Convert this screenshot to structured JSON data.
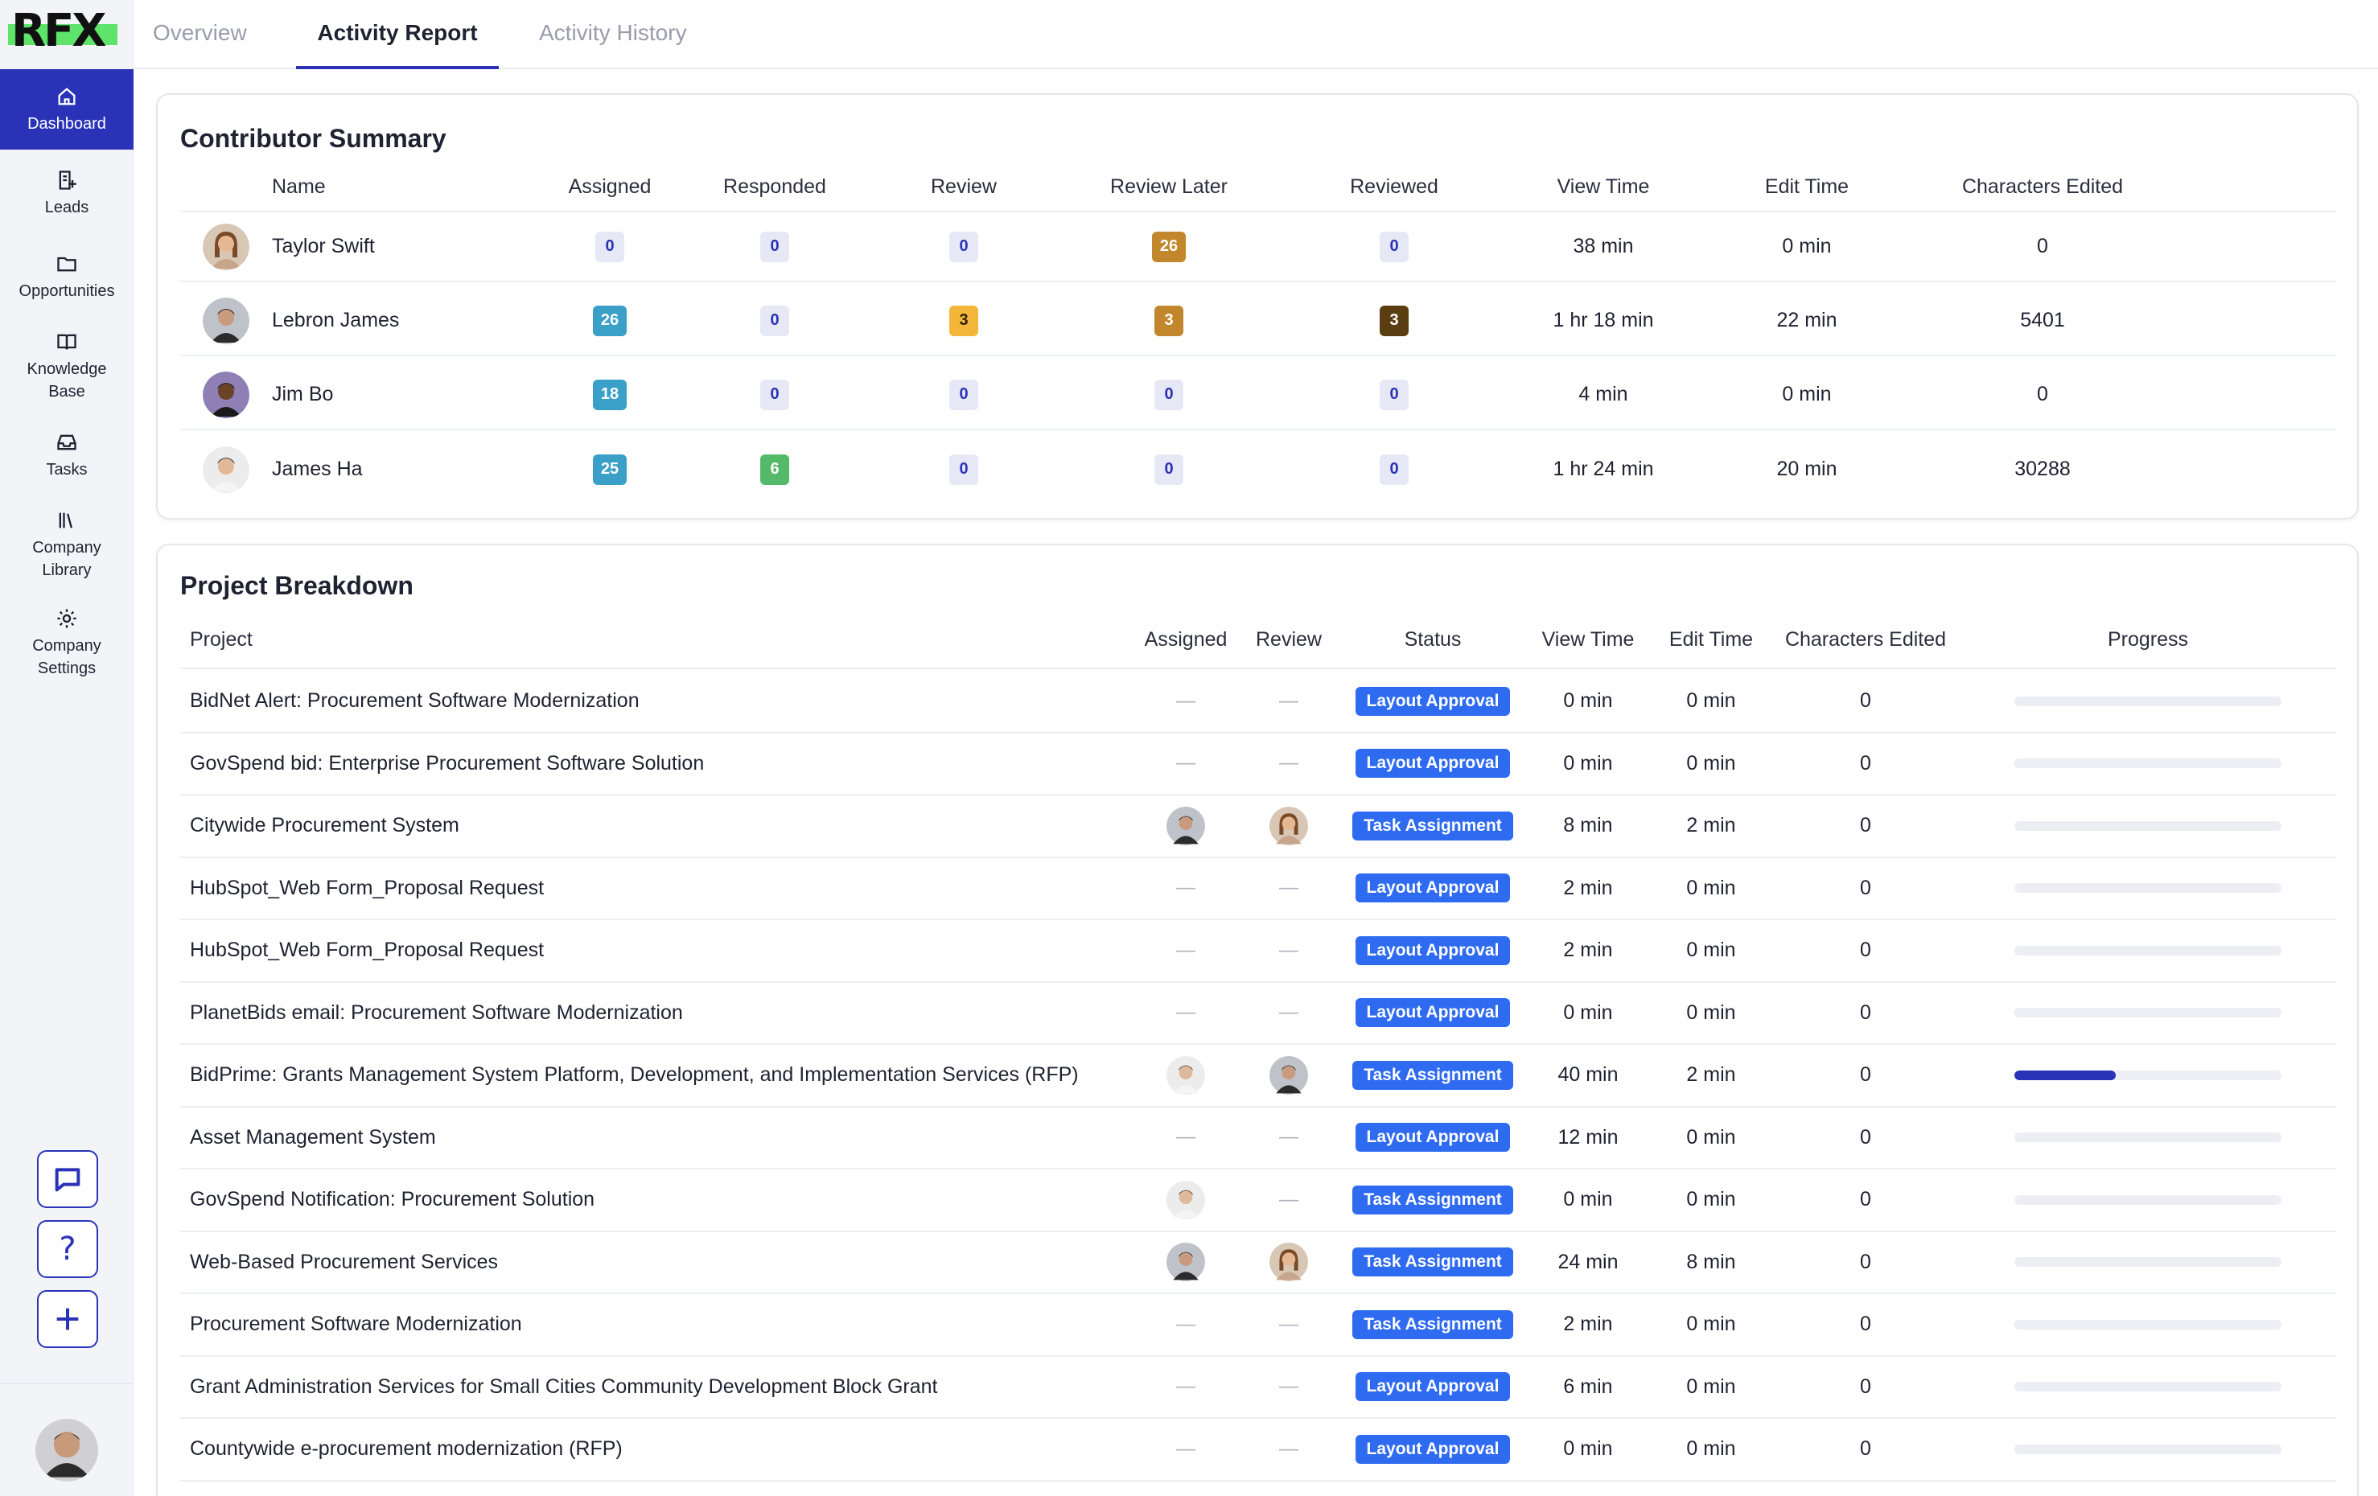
{
  "app": {
    "logo": "RFX"
  },
  "sidebar": {
    "items": [
      {
        "label": "Dashboard",
        "icon": "home-icon"
      },
      {
        "label": "Leads",
        "icon": "lead-doc-icon"
      },
      {
        "label": "Opportunities",
        "icon": "folder-icon"
      },
      {
        "label": "Knowledge Base",
        "icon": "book-icon"
      },
      {
        "label": "Tasks",
        "icon": "inbox-icon"
      },
      {
        "label": "Company Library",
        "icon": "library-icon"
      },
      {
        "label": "Company Settings",
        "icon": "gear-icon"
      }
    ],
    "bottom": [
      {
        "icon": "chat-icon",
        "glyph": ""
      },
      {
        "icon": "help-icon",
        "glyph": "?"
      },
      {
        "icon": "plus-icon",
        "glyph": ""
      }
    ]
  },
  "tabs": [
    {
      "label": "Overview",
      "active": false
    },
    {
      "label": "Activity Report",
      "active": true
    },
    {
      "label": "Activity History",
      "active": false
    }
  ],
  "contributors": {
    "title": "Contributor Summary",
    "columns": [
      "Name",
      "Assigned",
      "Responded",
      "Review",
      "Review Later",
      "Reviewed",
      "View Time",
      "Edit Time",
      "Characters Edited"
    ],
    "rows": [
      {
        "name": "Taylor Swift",
        "avatar": "avatar-woman",
        "assigned": "0",
        "responded": "0",
        "review": "0",
        "review_later": "26",
        "reviewed": "0",
        "view_time": "38 min",
        "edit_time": "0 min",
        "chars": "0"
      },
      {
        "name": "Lebron James",
        "avatar": "avatar-man-dark",
        "assigned": "26",
        "responded": "0",
        "review": "3",
        "review_later": "3",
        "reviewed": "3",
        "view_time": "1 hr 18 min",
        "edit_time": "22 min",
        "chars": "5401"
      },
      {
        "name": "Jim Bo",
        "avatar": "avatar-man-black",
        "assigned": "18",
        "responded": "0",
        "review": "0",
        "review_later": "0",
        "reviewed": "0",
        "view_time": "4 min",
        "edit_time": "0 min",
        "chars": "0"
      },
      {
        "name": "James Ha",
        "avatar": "avatar-man-light",
        "assigned": "25",
        "responded": "6",
        "review": "0",
        "review_later": "0",
        "reviewed": "0",
        "view_time": "1 hr 24 min",
        "edit_time": "20 min",
        "chars": "30288"
      }
    ]
  },
  "projects": {
    "title": "Project Breakdown",
    "columns": [
      "Project",
      "Assigned",
      "Review",
      "Status",
      "View Time",
      "Edit Time",
      "Characters Edited",
      "Progress"
    ],
    "rows": [
      {
        "name": "BidNet Alert: Procurement Software Modernization",
        "assigned": "—",
        "review": "—",
        "status": "Layout Approval",
        "view": "0 min",
        "edit": "0 min",
        "chars": "0",
        "progress": 0
      },
      {
        "name": "GovSpend bid: Enterprise Procurement Software Solution",
        "assigned": "—",
        "review": "—",
        "status": "Layout Approval",
        "view": "0 min",
        "edit": "0 min",
        "chars": "0",
        "progress": 0
      },
      {
        "name": "Citywide Procurement System",
        "assigned": "avatar-man-dark",
        "review": "avatar-woman",
        "status": "Task Assignment",
        "view": "8 min",
        "edit": "2 min",
        "chars": "0",
        "progress": 0
      },
      {
        "name": "HubSpot_Web Form_Proposal Request",
        "assigned": "—",
        "review": "—",
        "status": "Layout Approval",
        "view": "2 min",
        "edit": "0 min",
        "chars": "0",
        "progress": 0
      },
      {
        "name": "HubSpot_Web Form_Proposal Request",
        "assigned": "—",
        "review": "—",
        "status": "Layout Approval",
        "view": "2 min",
        "edit": "0 min",
        "chars": "0",
        "progress": 0
      },
      {
        "name": "PlanetBids email: Procurement Software Modernization",
        "assigned": "—",
        "review": "—",
        "status": "Layout Approval",
        "view": "0 min",
        "edit": "0 min",
        "chars": "0",
        "progress": 0
      },
      {
        "name": "BidPrime: Grants Management System Platform, Development, and Implementation Services (RFP)",
        "assigned": "avatar-man-light",
        "review": "avatar-man-dark",
        "status": "Task Assignment",
        "view": "40 min",
        "edit": "2 min",
        "chars": "0",
        "progress": 0.38
      },
      {
        "name": "Asset Management System",
        "assigned": "—",
        "review": "—",
        "status": "Layout Approval",
        "view": "12 min",
        "edit": "0 min",
        "chars": "0",
        "progress": 0
      },
      {
        "name": "GovSpend Notification: Procurement Solution",
        "assigned": "avatar-man-light",
        "review": "—",
        "status": "Task Assignment",
        "view": "0 min",
        "edit": "0 min",
        "chars": "0",
        "progress": 0
      },
      {
        "name": "Web-Based Procurement Services",
        "assigned": "avatar-man-dark",
        "review": "avatar-woman",
        "status": "Task Assignment",
        "view": "24 min",
        "edit": "8 min",
        "chars": "0",
        "progress": 0
      },
      {
        "name": "Procurement Software Modernization",
        "assigned": "—",
        "review": "—",
        "status": "Task Assignment",
        "view": "2 min",
        "edit": "0 min",
        "chars": "0",
        "progress": 0
      },
      {
        "name": "Grant Administration Services for Small Cities Community Development Block Grant",
        "assigned": "—",
        "review": "—",
        "status": "Layout Approval",
        "view": "6 min",
        "edit": "0 min",
        "chars": "0",
        "progress": 0
      },
      {
        "name": "Countywide e-procurement modernization (RFP)",
        "assigned": "—",
        "review": "—",
        "status": "Layout Approval",
        "view": "0 min",
        "edit": "0 min",
        "chars": "0",
        "progress": 0
      }
    ]
  },
  "colors": {
    "accent": "#2a33b7",
    "status": "#2f6bf0",
    "logo_green": "#5ee36b"
  }
}
